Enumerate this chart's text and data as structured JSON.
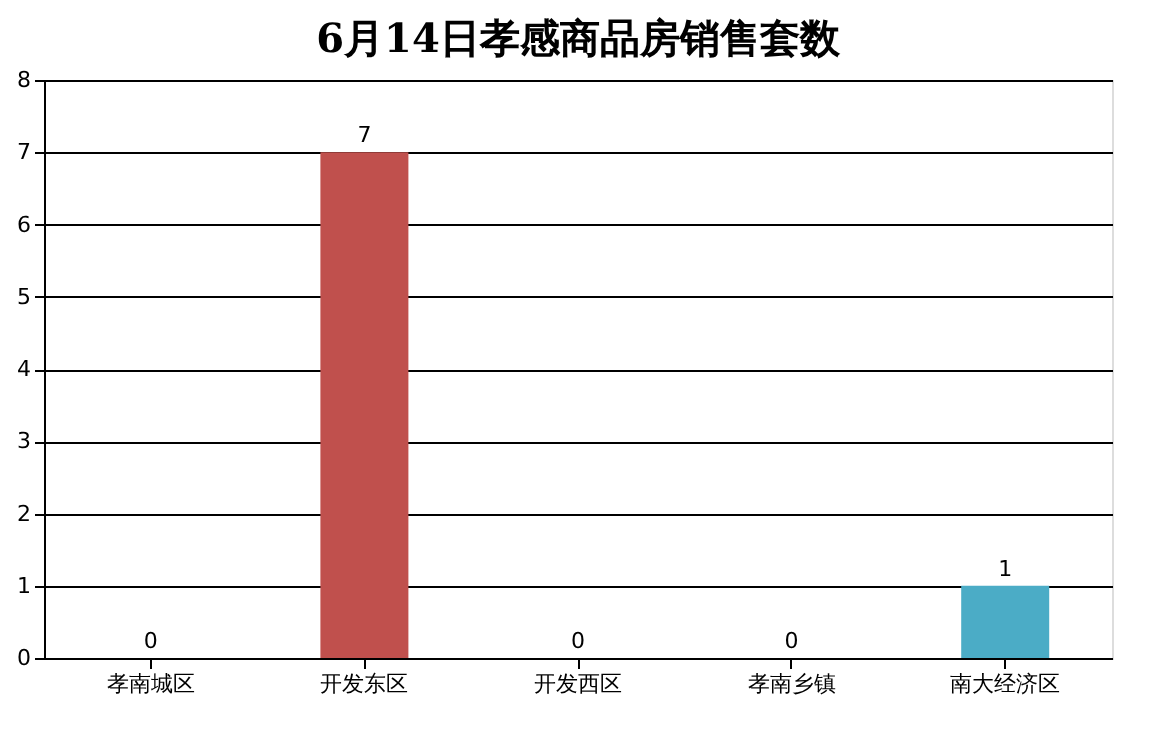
{
  "chart_data": {
    "type": "bar",
    "title": "6月14日孝感商品房销售套数",
    "categories": [
      "孝南城区",
      "开发东区",
      "开发西区",
      "孝南乡镇",
      "南大经济区"
    ],
    "values": [
      0,
      7,
      0,
      0,
      1
    ],
    "colors": [
      "#4f81bd",
      "#c0504d",
      "#9bbb59",
      "#8064a2",
      "#4bacc6"
    ],
    "ylim": [
      0,
      8
    ],
    "yticks": [
      0,
      1,
      2,
      3,
      4,
      5,
      6,
      7,
      8
    ],
    "grid": "y",
    "data_labels": true
  }
}
